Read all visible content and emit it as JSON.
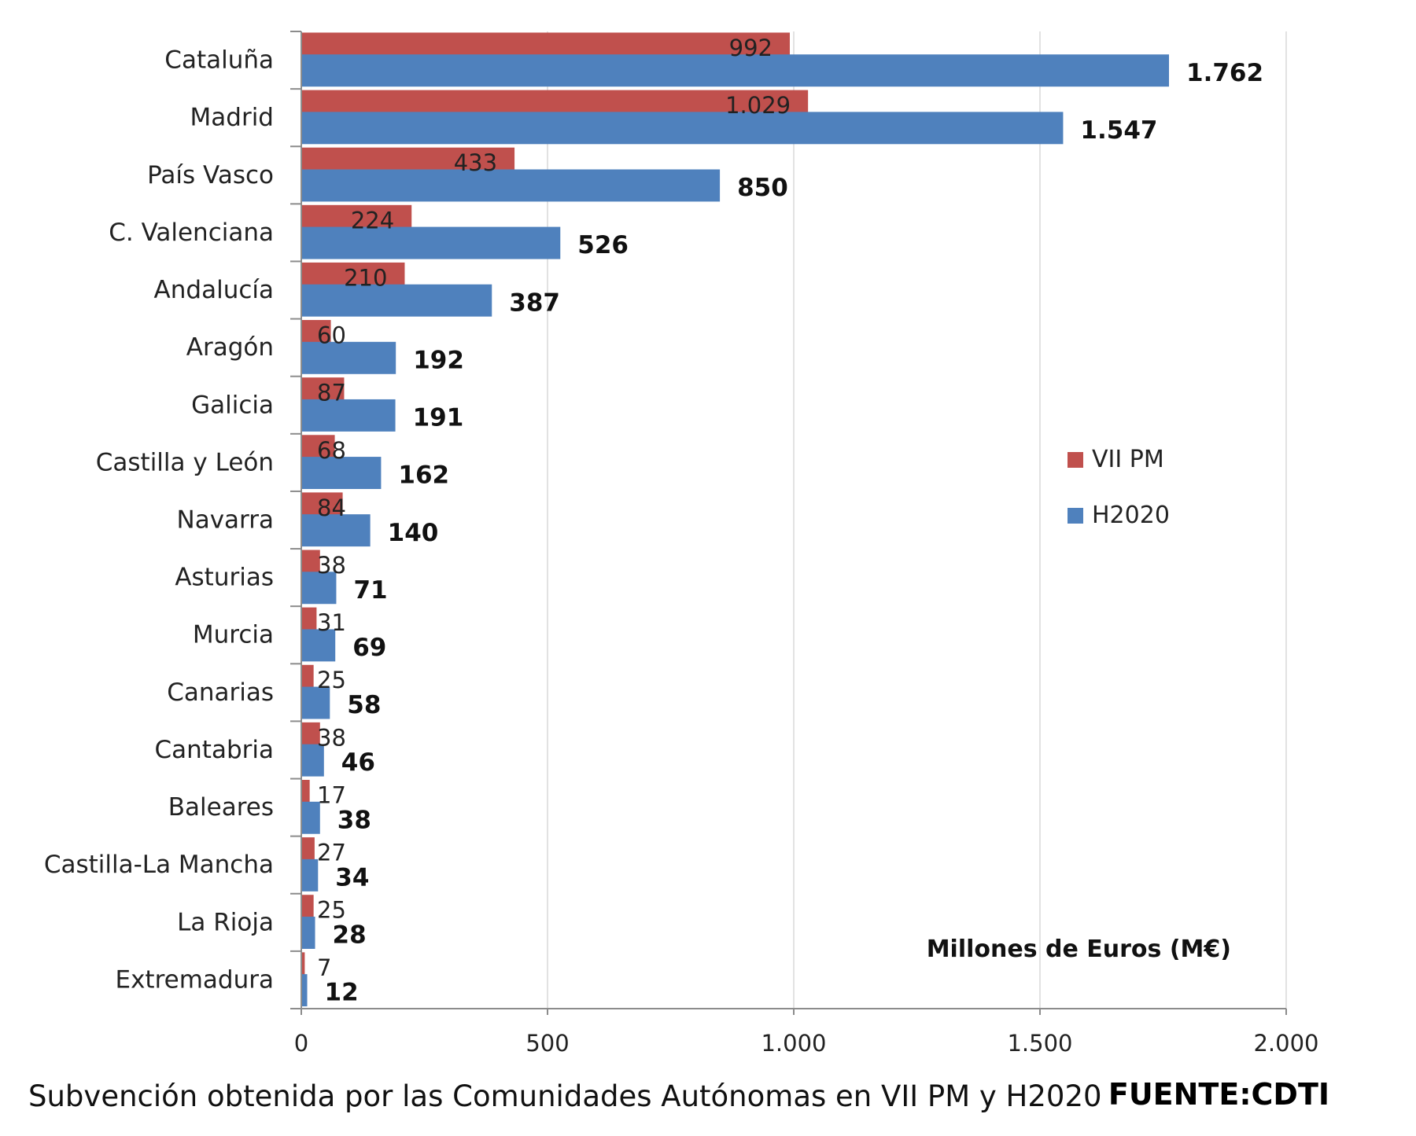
{
  "chart_data": {
    "type": "bar",
    "orientation": "horizontal",
    "categories": [
      "Cataluña",
      "Madrid",
      "País Vasco",
      "C. Valenciana",
      "Andalucía",
      "Aragón",
      "Galicia",
      "Castilla y León",
      "Navarra",
      "Asturias",
      "Murcia",
      "Canarias",
      "Cantabria",
      "Baleares",
      "Castilla-La Mancha",
      "La Rioja",
      "Extremadura"
    ],
    "series": [
      {
        "name": "VII PM",
        "color": "#c0504d",
        "values": [
          992,
          1029,
          433,
          224,
          210,
          60,
          87,
          68,
          84,
          38,
          31,
          25,
          38,
          17,
          27,
          25,
          7
        ],
        "labels": [
          "992",
          "1.029",
          "433",
          "224",
          "210",
          "60",
          "87",
          "68",
          "84",
          "38",
          "31",
          "25",
          "38",
          "17",
          "27",
          "25",
          "7"
        ]
      },
      {
        "name": "H2020",
        "color": "#4f81bd",
        "values": [
          1762,
          1547,
          850,
          526,
          387,
          192,
          191,
          162,
          140,
          71,
          69,
          58,
          46,
          38,
          34,
          28,
          12
        ],
        "labels": [
          "1.762",
          "1.547",
          "850",
          "526",
          "387",
          "192",
          "191",
          "162",
          "140",
          "71",
          "69",
          "58",
          "46",
          "38",
          "34",
          "28",
          "12"
        ]
      }
    ],
    "xlim": [
      0,
      2000
    ],
    "x_ticks": [
      0,
      500,
      1000,
      1500,
      2000
    ],
    "x_tick_labels": [
      "0",
      "500",
      "1.000",
      "1.500",
      "2.000"
    ],
    "unit_label": "Millones de Euros (M€)",
    "grid": true,
    "legend_position": "right"
  },
  "caption": "Subvención obtenida por las Comunidades Autónomas en VII PM y H2020",
  "source": "FUENTE:CDTI"
}
